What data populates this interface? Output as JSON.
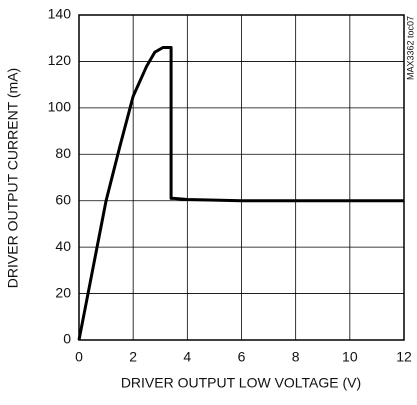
{
  "chart_data": {
    "type": "line",
    "xlabel": "DRIVER OUTPUT LOW VOLTAGE (V)",
    "ylabel": "DRIVER OUTPUT CURRENT (mA)",
    "annotation": "MAX3362 toc07",
    "x": [
      0,
      0.5,
      1,
      1.5,
      2,
      2.5,
      2.8,
      3.1,
      3.4,
      3.4,
      3.5,
      4,
      6,
      12
    ],
    "values": [
      0,
      30,
      60,
      83,
      105,
      118,
      124,
      126,
      126,
      61,
      61,
      60.5,
      60,
      60
    ],
    "color": "#000000",
    "xlim": [
      0,
      12
    ],
    "xticks": [
      0,
      2,
      4,
      6,
      8,
      10,
      12
    ],
    "ylim": [
      0,
      140
    ],
    "yticks": [
      0,
      20,
      40,
      60,
      80,
      100,
      120,
      140
    ],
    "grid": true
  }
}
